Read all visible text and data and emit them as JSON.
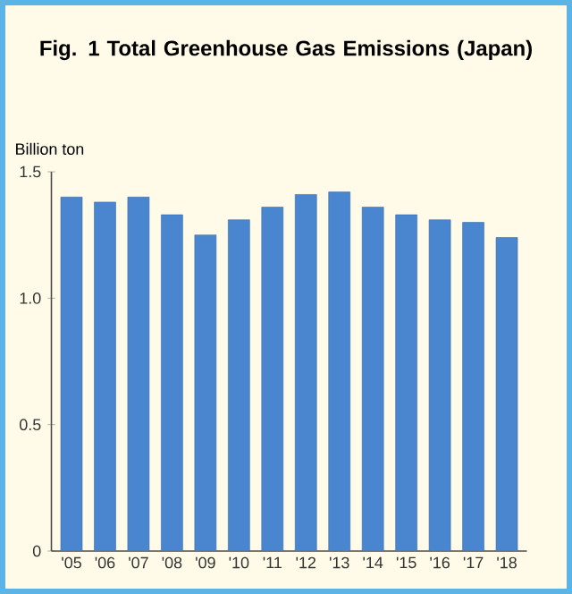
{
  "chart_data": {
    "type": "bar",
    "title": "Fig. 1  Total Greenhouse Gas Emissions (Japan)",
    "ylabel": "Billion ton",
    "categories": [
      "'05",
      "'06",
      "'07",
      "'08",
      "'09",
      "'10",
      "'11",
      "'12",
      "'13",
      "'14",
      "'15",
      "'16",
      "'17",
      "'18"
    ],
    "values": [
      1.4,
      1.38,
      1.4,
      1.33,
      1.25,
      1.31,
      1.36,
      1.41,
      1.42,
      1.36,
      1.33,
      1.31,
      1.3,
      1.24
    ],
    "color": "#4a86d0",
    "ylim": [
      0,
      1.5
    ],
    "yticks": [
      0,
      0.5,
      {
        "value": 1.0,
        "label": "1.0"
      },
      {
        "value": 1.5,
        "label": "1.5"
      }
    ]
  }
}
